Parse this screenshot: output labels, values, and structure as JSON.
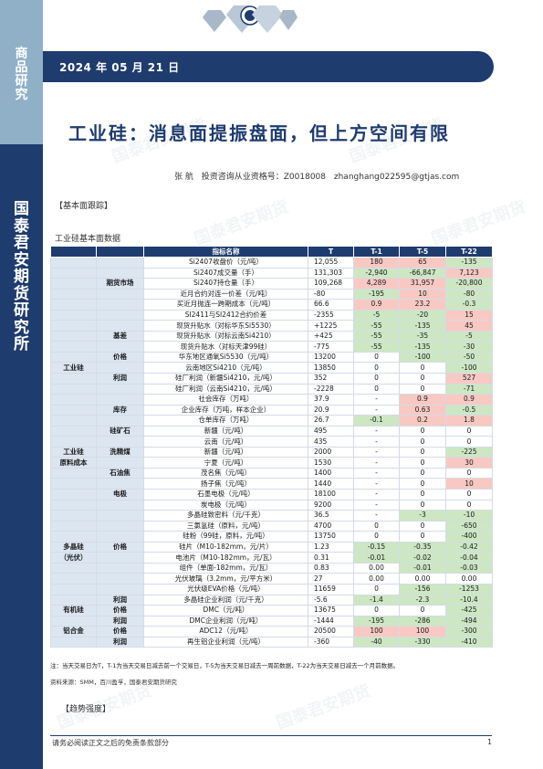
{
  "sidebar": {
    "top_text": [
      "商",
      "品",
      "研",
      "究"
    ],
    "bottom_text": [
      "国",
      "泰",
      "君",
      "安",
      "期",
      "货",
      "研",
      "究",
      "所"
    ]
  },
  "header": {
    "date": "2024 年 05 月 21 日",
    "title": "工业硅：消息面提振盘面，但上方空间有限",
    "author": "张 航",
    "license": "投资咨询从业资格号：Z0018008",
    "email": "zhanghang022595@gtjas.com"
  },
  "section_basic": "【基本面跟踪】",
  "table_title": "工业硅基本面数据",
  "table": {
    "headers": [
      "",
      "",
      "指标名称",
      "T",
      "T-1",
      "T-5",
      "T-22"
    ],
    "rows": [
      {
        "cat": "",
        "sub": "",
        "name": "Si2407收盘价（元/吨）",
        "t": "12,055",
        "t1": "180",
        "t5": "65",
        "t22": "-135"
      },
      {
        "cat": "",
        "sub": "",
        "name": "Si2407成交量（手）",
        "t": "131,303",
        "t1": "-2,940",
        "t5": "-66,847",
        "t22": "7,123"
      },
      {
        "cat": "",
        "sub": "期货市场",
        "name": "Si2407持仓量（手）",
        "t": "109,268",
        "t1": "4,289",
        "t5": "31,957",
        "t22": "-20,800"
      },
      {
        "cat": "",
        "sub": "",
        "name": "近月合约对连一价差（元/吨）",
        "t": "-80",
        "t1": "-195",
        "t5": "10",
        "t22": "-80"
      },
      {
        "cat": "",
        "sub": "",
        "name": "买近月抛连一跨期成本（元/吨）",
        "t": "66.6",
        "t1": "0.9",
        "t5": "23.2",
        "t22": "-0.3"
      },
      {
        "cat": "",
        "sub": "",
        "name": "SI2411与SI2412合约价差",
        "t": "-2355",
        "t1": "-5",
        "t5": "-20",
        "t22": "15"
      },
      {
        "cat": "",
        "sub": "",
        "name": "现货升贴水（对标华东Si5530）",
        "t": "+1225",
        "t1": "-55",
        "t5": "-135",
        "t22": "45"
      },
      {
        "cat": "",
        "sub": "基差",
        "name": "现货升贴水（对标云南Si4210）",
        "t": "+425",
        "t1": "-55",
        "t5": "-35",
        "t22": "-5"
      },
      {
        "cat": "",
        "sub": "",
        "name": "现货升贴水（对标天津99硅）",
        "t": "-775",
        "t1": "-55",
        "t5": "-135",
        "t22": "-30"
      },
      {
        "cat": "",
        "sub": "价格",
        "name": "华东地区通氧Si5530（元/吨）",
        "t": "13200",
        "t1": "0",
        "t5": "-100",
        "t22": "-50"
      },
      {
        "cat": "工业硅",
        "sub": "",
        "name": "云南地区Si4210（元/吨）",
        "t": "13850",
        "t1": "0",
        "t5": "0",
        "t22": "-100"
      },
      {
        "cat": "",
        "sub": "利润",
        "name": "硅厂利润（新疆Si4210，元/吨）",
        "t": "352",
        "t1": "0",
        "t5": "0",
        "t22": "527"
      },
      {
        "cat": "",
        "sub": "",
        "name": "硅厂利润（云南Si4210，元/吨）",
        "t": "-2228",
        "t1": "0",
        "t5": "0",
        "t22": "-71"
      },
      {
        "cat": "",
        "sub": "",
        "name": "社会库存（万吨）",
        "t": "37.9",
        "t1": "-",
        "t5": "0.9",
        "t22": "0.9"
      },
      {
        "cat": "",
        "sub": "库存",
        "name": "企业库存（万吨，样本企业）",
        "t": "20.9",
        "t1": "-",
        "t5": "0.63",
        "t22": "-0.5"
      },
      {
        "cat": "",
        "sub": "",
        "name": "仓单库存（万吨）",
        "t": "26.7",
        "t1": "-0.1",
        "t5": "0.2",
        "t22": "1.8"
      },
      {
        "cat": "",
        "sub": "硅矿石",
        "name": "新疆（元/吨）",
        "t": "495",
        "t1": "-",
        "t5": "0",
        "t22": "0"
      },
      {
        "cat": "",
        "sub": "",
        "name": "云南（元/吨）",
        "t": "435",
        "t1": "-",
        "t5": "0",
        "t22": "0"
      },
      {
        "cat": "工业硅",
        "sub": "洗精煤",
        "name": "新疆（元/吨）",
        "t": "2000",
        "t1": "-",
        "t5": "0",
        "t22": "-225"
      },
      {
        "cat": "原料成本",
        "sub": "",
        "name": "宁夏（元/吨）",
        "t": "1530",
        "t1": "-",
        "t5": "0",
        "t22": "30"
      },
      {
        "cat": "",
        "sub": "石油焦",
        "name": "茂名焦（元/吨）",
        "t": "1400",
        "t1": "-",
        "t5": "0",
        "t22": "0"
      },
      {
        "cat": "",
        "sub": "",
        "name": "扬子焦（元/吨）",
        "t": "1440",
        "t1": "-",
        "t5": "0",
        "t22": "10"
      },
      {
        "cat": "",
        "sub": "电极",
        "name": "石墨电极（元/吨）",
        "t": "18100",
        "t1": "-",
        "t5": "0",
        "t22": "0"
      },
      {
        "cat": "",
        "sub": "",
        "name": "炭电极（元/吨）",
        "t": "9200",
        "t1": "-",
        "t5": "0",
        "t22": "0"
      },
      {
        "cat": "",
        "sub": "",
        "name": "多晶硅致密料（元/千克）",
        "t": "36.5",
        "t1": "-",
        "t5": "-3",
        "t22": "-10"
      },
      {
        "cat": "",
        "sub": "",
        "name": "三氯氢硅（原料，元/吨）",
        "t": "4700",
        "t1": "0",
        "t5": "0",
        "t22": "-650"
      },
      {
        "cat": "",
        "sub": "",
        "name": "硅粉（99硅，原料，元/吨）",
        "t": "13750",
        "t1": "0",
        "t5": "0",
        "t22": "-400"
      },
      {
        "cat": "多晶硅",
        "sub": "价格",
        "name": "硅片（M10-182mm，元/片）",
        "t": "1.23",
        "t1": "-0.15",
        "t5": "-0.35",
        "t22": "-0.42"
      },
      {
        "cat": "（光伏）",
        "sub": "",
        "name": "电池片（M10-182mm，元/瓦）",
        "t": "0.31",
        "t1": "-0.01",
        "t5": "-0.02",
        "t22": "-0.04"
      },
      {
        "cat": "",
        "sub": "",
        "name": "组件（单面-182mm，元/瓦）",
        "t": "0.83",
        "t1": "0.00",
        "t5": "-0.01",
        "t22": "-0.03"
      },
      {
        "cat": "",
        "sub": "",
        "name": "光伏玻璃（3.2mm，元/平方米）",
        "t": "27",
        "t1": "0.00",
        "t5": "0.00",
        "t22": "0.00"
      },
      {
        "cat": "",
        "sub": "",
        "name": "光伏级EVA价格（元/吨）",
        "t": "11659",
        "t1": "0",
        "t5": "-156",
        "t22": "-1253"
      },
      {
        "cat": "",
        "sub": "利润",
        "name": "多晶硅企业利润（元/千克）",
        "t": "-5.6",
        "t1": "-1.4",
        "t5": "-2.3",
        "t22": "-10.4"
      },
      {
        "cat": "有机硅",
        "sub": "价格",
        "name": "DMC（元/吨）",
        "t": "13675",
        "t1": "0",
        "t5": "0",
        "t22": "-425"
      },
      {
        "cat": "",
        "sub": "利润",
        "name": "DMC企业利润（元/吨）",
        "t": "-1444",
        "t1": "-195",
        "t5": "-286",
        "t22": "-494"
      },
      {
        "cat": "铝合金",
        "sub": "价格",
        "name": "ADC12（元/吨）",
        "t": "20500",
        "t1": "100",
        "t5": "100",
        "t22": "-300"
      },
      {
        "cat": "",
        "sub": "利润",
        "name": "再生铝企业利润（元/吨）",
        "t": "-360",
        "t1": "-40",
        "t5": "-330",
        "t22": "-410"
      }
    ]
  },
  "footnote": "注：当天交易日为T，T-1为当天交易日减去前一个交易日，T-5为当天交易日减去一周前数据，T-22为当天交易日减去一个月前数据。",
  "source": "资料来源：SMM，百川盈孚，国泰君安期货研究",
  "section_trend": "【趋势强度】",
  "footer": {
    "disclaimer": "请务必阅读正文之后的免责条款部分",
    "page": "1"
  },
  "watermark": "国泰君安期货",
  "colors": {
    "navy": "#1f3c6e",
    "light_blue": "#8fb0c7",
    "positive": "#f8c9c3",
    "negative": "#cde7c3",
    "category_bg": "#dce6f1"
  }
}
